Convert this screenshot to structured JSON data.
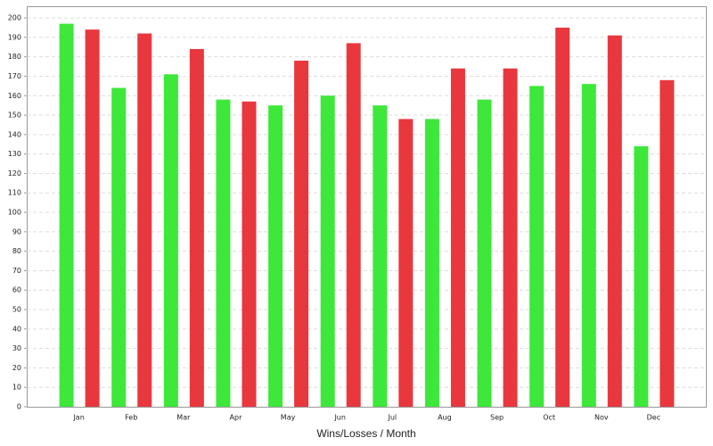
{
  "chart_data": {
    "type": "bar",
    "x_label": "Wins/Losses / Month",
    "categories": [
      "Jan",
      "Feb",
      "Mar",
      "Apr",
      "May",
      "Jun",
      "Jul",
      "Aug",
      "Sep",
      "Oct",
      "Nov",
      "Dec"
    ],
    "series": [
      {
        "color": "#3de83a",
        "values": [
          197,
          164,
          171,
          158,
          155,
          160,
          155,
          148,
          158,
          165,
          166,
          134
        ]
      },
      {
        "color": "#e8383d",
        "values": [
          194,
          192,
          184,
          157,
          178,
          187,
          148,
          174,
          174,
          195,
          191,
          168
        ]
      }
    ],
    "ylim": [
      0,
      206
    ],
    "yticks": [
      0,
      10,
      20,
      30,
      40,
      50,
      60,
      70,
      80,
      90,
      100,
      110,
      120,
      130,
      140,
      150,
      160,
      170,
      180,
      190,
      200
    ],
    "grid": true
  }
}
